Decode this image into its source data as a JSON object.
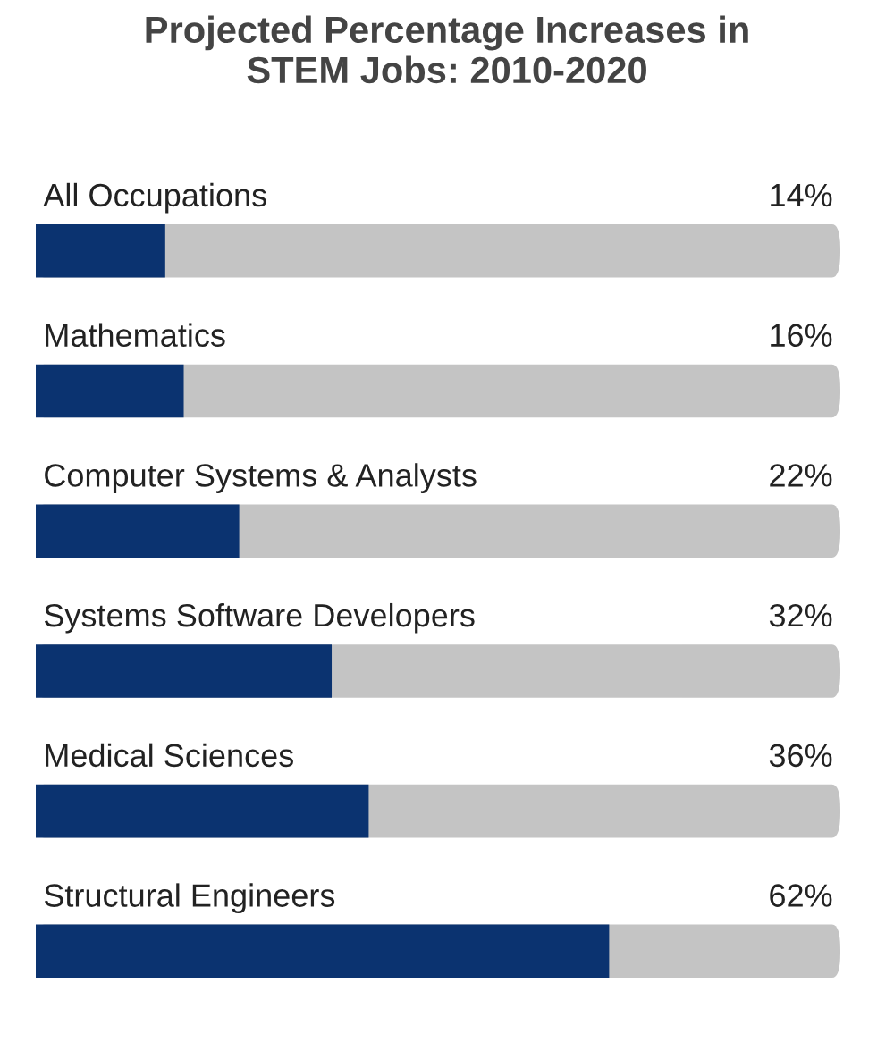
{
  "chart_data": {
    "type": "bar",
    "orientation": "horizontal",
    "title": "Projected Percentage Increases in\nSTEM Jobs: 2010-2020",
    "categories": [
      "All Occupations",
      "Mathematics",
      "Computer Systems & Analysts",
      "Systems Software Developers",
      "Medical Sciences",
      "Structural Engineers"
    ],
    "values": [
      14,
      16,
      22,
      32,
      36,
      62
    ],
    "color": "#0b3370",
    "xlim": [
      0,
      87
    ],
    "data_labels": true,
    "value_labels": [
      "14%",
      "16%",
      "22%",
      "32%",
      "36%",
      "62%"
    ]
  }
}
